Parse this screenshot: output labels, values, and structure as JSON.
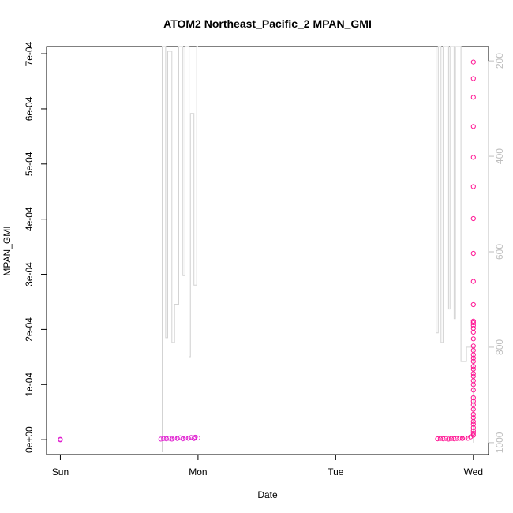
{
  "chart_data": {
    "type": "scatter",
    "title": "ATOM2 Northeast_Pacific_2 MPAN_GMI",
    "xlabel": "Date",
    "ylabel": "MPAN_GMI",
    "x_ticks": [
      "Sun",
      "Mon",
      "Tue",
      "Wed"
    ],
    "xlim": [
      -0.1,
      3.11
    ],
    "ylim": [
      -2.7e-05,
      0.000713
    ],
    "y_ticks": [
      0,
      0.0001,
      0.0002,
      0.0003,
      0.0004,
      0.0005,
      0.0006,
      0.0007
    ],
    "y_tick_labels": [
      "0e+00",
      "1e-04",
      "2e-04",
      "3e-04",
      "4e-04",
      "5e-04",
      "6e-04",
      "7e-04"
    ],
    "y2_ticks": [
      200,
      400,
      600,
      800,
      1000
    ],
    "y2lim": [
      1025,
      170
    ],
    "grid": false,
    "series": [
      {
        "kind": "scatter",
        "color": "#e020d0",
        "points": [
          [
            0.0,
            2e-07
          ],
          [
            0.0,
            6e-07
          ],
          [
            0.0,
            -2e-07
          ],
          [
            0.73,
            1e-06
          ],
          [
            0.75,
            2e-06
          ],
          [
            0.77,
            1.5e-06
          ],
          [
            0.79,
            2.5e-06
          ],
          [
            0.81,
            1e-06
          ],
          [
            0.83,
            3e-06
          ],
          [
            0.85,
            2e-06
          ],
          [
            0.87,
            3.5e-06
          ],
          [
            0.89,
            1.5e-06
          ],
          [
            0.91,
            3e-06
          ],
          [
            0.93,
            2.5e-06
          ],
          [
            0.95,
            4e-06
          ],
          [
            0.97,
            2e-06
          ],
          [
            0.98,
            4.5e-06
          ],
          [
            1.0,
            3e-06
          ]
        ]
      },
      {
        "kind": "scatter",
        "color": "#ff1493",
        "points": [
          [
            2.74,
            1.5e-06
          ],
          [
            2.76,
            2e-06
          ],
          [
            2.78,
            1.5e-06
          ],
          [
            2.8,
            2e-06
          ],
          [
            2.82,
            1e-06
          ],
          [
            2.84,
            2e-06
          ],
          [
            2.86,
            1.5e-06
          ],
          [
            2.88,
            2e-06
          ],
          [
            2.9,
            2.5e-06
          ],
          [
            2.92,
            2e-06
          ],
          [
            2.94,
            3e-06
          ],
          [
            2.96,
            2.5e-06
          ],
          [
            2.98,
            5e-06
          ],
          [
            3.0,
            8e-06
          ],
          [
            3.0,
            1.2e-05
          ],
          [
            3.0,
            1.6e-05
          ],
          [
            3.0,
            2.2e-05
          ],
          [
            3.0,
            2.8e-05
          ],
          [
            3.0,
            3.3e-05
          ],
          [
            3.0,
            4e-05
          ],
          [
            3.0,
            4.6e-05
          ],
          [
            3.0,
            5.5e-05
          ],
          [
            3.0,
            6.3e-05
          ],
          [
            3.0,
            7e-05
          ],
          [
            3.0,
            7.6e-05
          ],
          [
            3.0,
            9e-05
          ],
          [
            3.0,
            0.0001
          ],
          [
            3.0,
            0.000107
          ],
          [
            3.0,
            0.000115
          ],
          [
            3.0,
            0.00012
          ],
          [
            3.0,
            0.000128
          ],
          [
            3.0,
            0.000133
          ],
          [
            3.0,
            0.000142
          ],
          [
            3.0,
            0.000148
          ],
          [
            3.0,
            0.000154
          ],
          [
            3.0,
            0.000162
          ],
          [
            3.0,
            0.00017
          ],
          [
            3.0,
            0.000183
          ],
          [
            3.0,
            0.000195
          ],
          [
            3.0,
            0.000202
          ],
          [
            3.0,
            0.000207
          ],
          [
            3.0,
            0.000212
          ],
          [
            3.0,
            0.000215
          ],
          [
            3.0,
            0.000245
          ],
          [
            3.0,
            0.000287
          ],
          [
            3.0,
            0.000338
          ],
          [
            3.0,
            0.000401
          ],
          [
            3.0,
            0.000459
          ],
          [
            3.0,
            0.000512
          ],
          [
            3.0,
            0.000568
          ],
          [
            3.0,
            0.000621
          ],
          [
            3.0,
            0.000655
          ],
          [
            3.0,
            0.000685
          ]
        ]
      },
      {
        "kind": "line",
        "axis": "right",
        "color": "#d3d3d3",
        "segments": [
          [
            [
              0.74,
              1020
            ],
            [
              0.74,
              170
            ],
            [
              0.765,
              170
            ],
            [
              0.765,
              780
            ],
            [
              0.78,
              780
            ],
            [
              0.78,
              180
            ],
            [
              0.81,
              180
            ],
            [
              0.81,
              790
            ],
            [
              0.83,
              790
            ],
            [
              0.83,
              710
            ],
            [
              0.86,
              710
            ],
            [
              0.86,
              170
            ],
            [
              0.89,
              170
            ],
            [
              0.89,
              650
            ],
            [
              0.905,
              650
            ],
            [
              0.905,
              170
            ],
            [
              0.935,
              170
            ],
            [
              0.935,
              820
            ],
            [
              0.945,
              820
            ],
            [
              0.945,
              310
            ],
            [
              0.97,
              310
            ],
            [
              0.97,
              670
            ],
            [
              0.99,
              670
            ],
            [
              0.99,
              170
            ],
            [
              1.0,
              170
            ]
          ],
          [
            [
              2.73,
              170
            ],
            [
              2.73,
              770
            ],
            [
              2.745,
              770
            ],
            [
              2.745,
              170
            ],
            [
              2.765,
              170
            ],
            [
              2.765,
              790
            ],
            [
              2.78,
              790
            ],
            [
              2.78,
              170
            ],
            [
              2.82,
              170
            ],
            [
              2.82,
              720
            ],
            [
              2.83,
              720
            ],
            [
              2.83,
              170
            ],
            [
              2.86,
              170
            ],
            [
              2.86,
              740
            ],
            [
              2.87,
              740
            ],
            [
              2.87,
              170
            ],
            [
              2.91,
              170
            ],
            [
              2.91,
              830
            ],
            [
              2.95,
              830
            ],
            [
              2.95,
              800
            ],
            [
              3.0,
              800
            ],
            [
              3.0,
              1000
            ]
          ]
        ]
      }
    ]
  }
}
